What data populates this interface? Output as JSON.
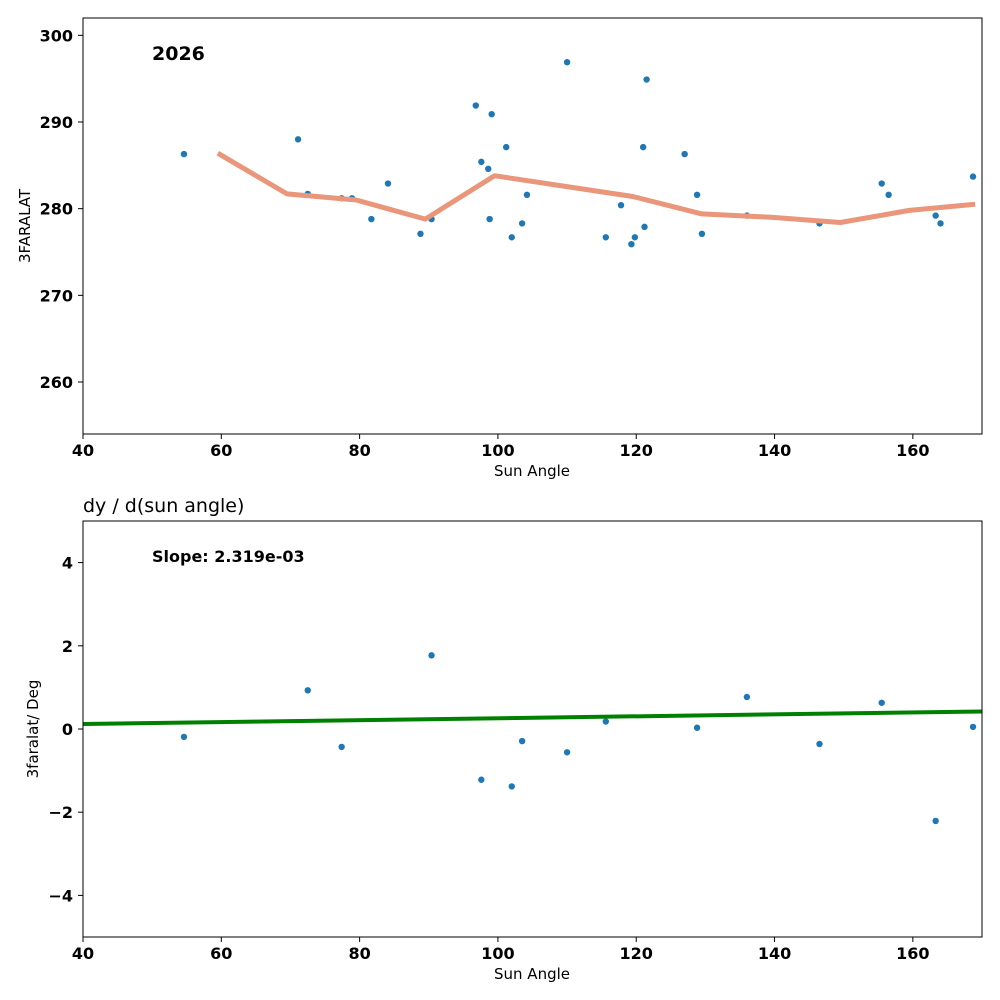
{
  "chart_data": [
    {
      "type": "scatter",
      "title": "",
      "annotation": "2026",
      "xlabel": "Sun Angle",
      "ylabel": "3FARALAT",
      "xlim": [
        40,
        170
      ],
      "ylim": [
        254,
        302
      ],
      "xticks": [
        40,
        60,
        80,
        100,
        120,
        140,
        160
      ],
      "yticks": [
        260,
        270,
        280,
        290,
        300
      ],
      "grid": false,
      "colors": {
        "points": "#1f77b4",
        "trend": "#e9967a"
      },
      "series": [
        {
          "kind": "points",
          "x": [
            54.6,
            71.1,
            72.5,
            77.4,
            78.9,
            81.7,
            84.1,
            88.8,
            90.4,
            96.8,
            97.6,
            98.6,
            98.8,
            99.1,
            101.2,
            102.0,
            103.5,
            104.2,
            110.0,
            115.6,
            117.8,
            119.3,
            119.8,
            121.0,
            121.2,
            121.5,
            127.0,
            128.8,
            129.5,
            136.0,
            146.5,
            155.5,
            156.5,
            163.3,
            164.0,
            168.7
          ],
          "y": [
            286.3,
            288.0,
            281.7,
            281.2,
            281.2,
            278.8,
            282.9,
            277.1,
            278.8,
            291.9,
            285.4,
            284.6,
            278.8,
            290.9,
            287.1,
            276.7,
            278.3,
            281.6,
            296.9,
            276.7,
            280.4,
            275.9,
            276.7,
            287.1,
            277.9,
            294.9,
            286.3,
            281.6,
            277.1,
            279.2,
            278.3,
            282.9,
            281.6,
            279.2,
            278.3,
            283.7
          ]
        },
        {
          "kind": "trend",
          "x": [
            59.5,
            69.5,
            79.5,
            89.5,
            99.5,
            109.5,
            119.5,
            129.5,
            139.5,
            149.5,
            159.5,
            169.0
          ],
          "y": [
            286.4,
            281.7,
            281.0,
            278.8,
            283.8,
            282.6,
            281.4,
            279.4,
            279.0,
            278.4,
            279.8,
            280.5
          ]
        }
      ]
    },
    {
      "type": "scatter",
      "title": "dy / d(sun angle)",
      "annotation": "Slope: 2.319e-03",
      "xlabel": "Sun Angle",
      "ylabel": "3faralat/ Deg",
      "xlim": [
        40,
        170
      ],
      "ylim": [
        -5,
        5
      ],
      "xticks": [
        40,
        60,
        80,
        100,
        120,
        140,
        160
      ],
      "yticks": [
        -4,
        -2,
        0,
        2,
        4
      ],
      "yticklabels": [
        "−4",
        "−2",
        "0",
        "2",
        "4"
      ],
      "grid": false,
      "colors": {
        "points": "#1f77b4",
        "fit": "#008000"
      },
      "series": [
        {
          "kind": "points",
          "x": [
            54.6,
            72.5,
            77.4,
            90.4,
            97.6,
            102.0,
            103.5,
            110.0,
            115.6,
            128.8,
            136.0,
            146.5,
            155.5,
            163.3,
            168.7
          ],
          "y": [
            -0.19,
            0.93,
            -0.43,
            1.77,
            -1.22,
            -1.38,
            -0.29,
            -0.56,
            0.18,
            0.03,
            0.77,
            -0.36,
            0.63,
            -2.21,
            0.05
          ]
        },
        {
          "kind": "fit",
          "x": [
            40,
            170
          ],
          "y": [
            0.12,
            0.42
          ]
        }
      ]
    }
  ]
}
